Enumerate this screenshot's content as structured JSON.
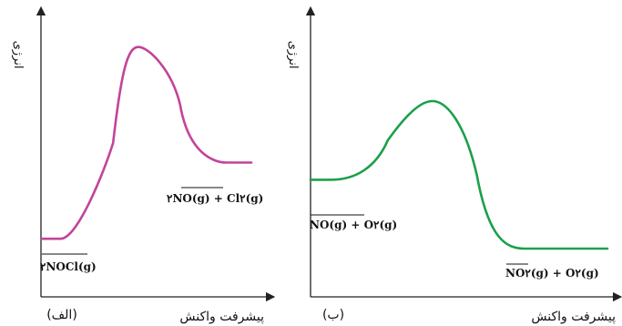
{
  "panels": [
    {
      "tag": "(الف)",
      "y_axis_label": "انرژی",
      "x_axis_label": "پیشرفت واکنش",
      "reactant_label": "۲NOCl(g)",
      "product_label": "۲NO(g) + Cl۲(g)",
      "curve_color": "#c2449a",
      "profile": {
        "reactant_energy": 0.14,
        "peak_energy": 0.92,
        "product_energy": 0.45
      }
    },
    {
      "tag": "(ب)",
      "y_axis_label": "انرژی",
      "x_axis_label": "پیشرفت واکنش",
      "reactant_label": "NO(g) + O۲(g)",
      "product_label": "NO۲(g) + O۲(g)",
      "curve_color": "#1ba04a",
      "profile": {
        "reactant_energy": 0.38,
        "peak_energy": 0.7,
        "product_energy": 0.1
      }
    }
  ]
}
